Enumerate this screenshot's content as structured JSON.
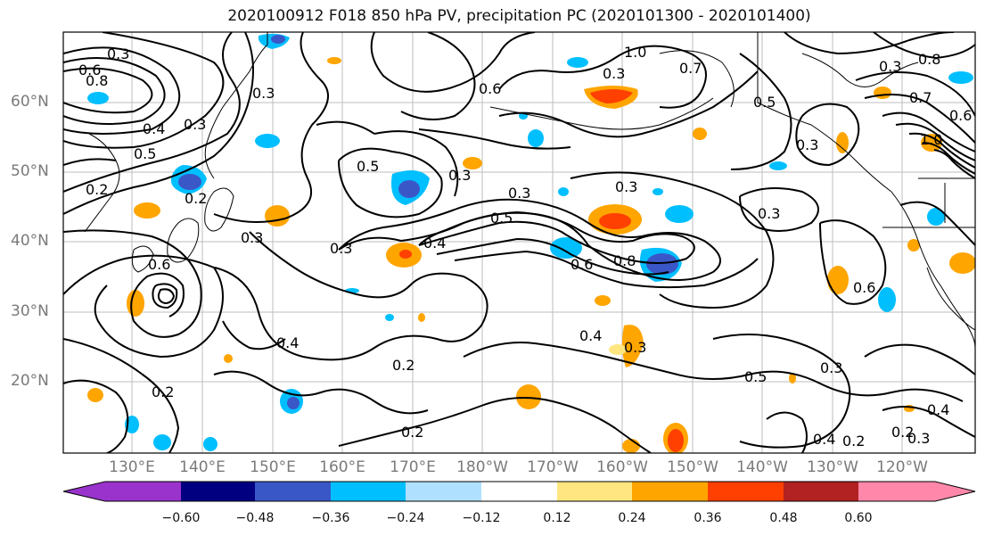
{
  "title": "2020100912 F018 850 hPa PV, precipitation PC (2020101300 - 2020101400)",
  "map": {
    "lat_labels": [
      "60°N",
      "50°N",
      "40°N",
      "30°N",
      "20°N"
    ],
    "lon_labels": [
      "130°E",
      "140°E",
      "150°E",
      "160°E",
      "170°E",
      "180°W",
      "170°W",
      "160°W",
      "150°W",
      "140°W",
      "130°W",
      "120°W"
    ],
    "contour_labels": [
      "0.3",
      "0.6",
      "0.8",
      "0.3",
      "0.4",
      "0.3",
      "0.5",
      "0.2",
      "0.2",
      "0.3",
      "0.6",
      "0.3",
      "0.5",
      "0.3",
      "0.3",
      "0.4",
      "0.5",
      "0.6",
      "0.8",
      "0.3",
      "0.4",
      "0.2",
      "0.2",
      "0.6",
      "0.3",
      "0.4",
      "0.2",
      "0.3",
      "0.5",
      "0.3",
      "0.4",
      "0.2",
      "0.2",
      "0.3",
      "0.4",
      "1.0",
      "0.7",
      "0.6",
      "0.3",
      "0.5",
      "0.3",
      "0.7",
      "1.0",
      "0.6",
      "0.3",
      "0.8"
    ]
  },
  "colorbar": {
    "tick_labels": [
      "−0.60",
      "−0.48",
      "−0.36",
      "−0.24",
      "−0.12",
      "0.12",
      "0.24",
      "0.36",
      "0.48",
      "0.60"
    ],
    "colors": [
      "#9933cc",
      "#000080",
      "#3a57c8",
      "#00bfff",
      "#b0e0ff",
      "#ffffff",
      "#ffe680",
      "#ffa500",
      "#ff4000",
      "#b22222",
      "#ff88aa"
    ]
  }
}
